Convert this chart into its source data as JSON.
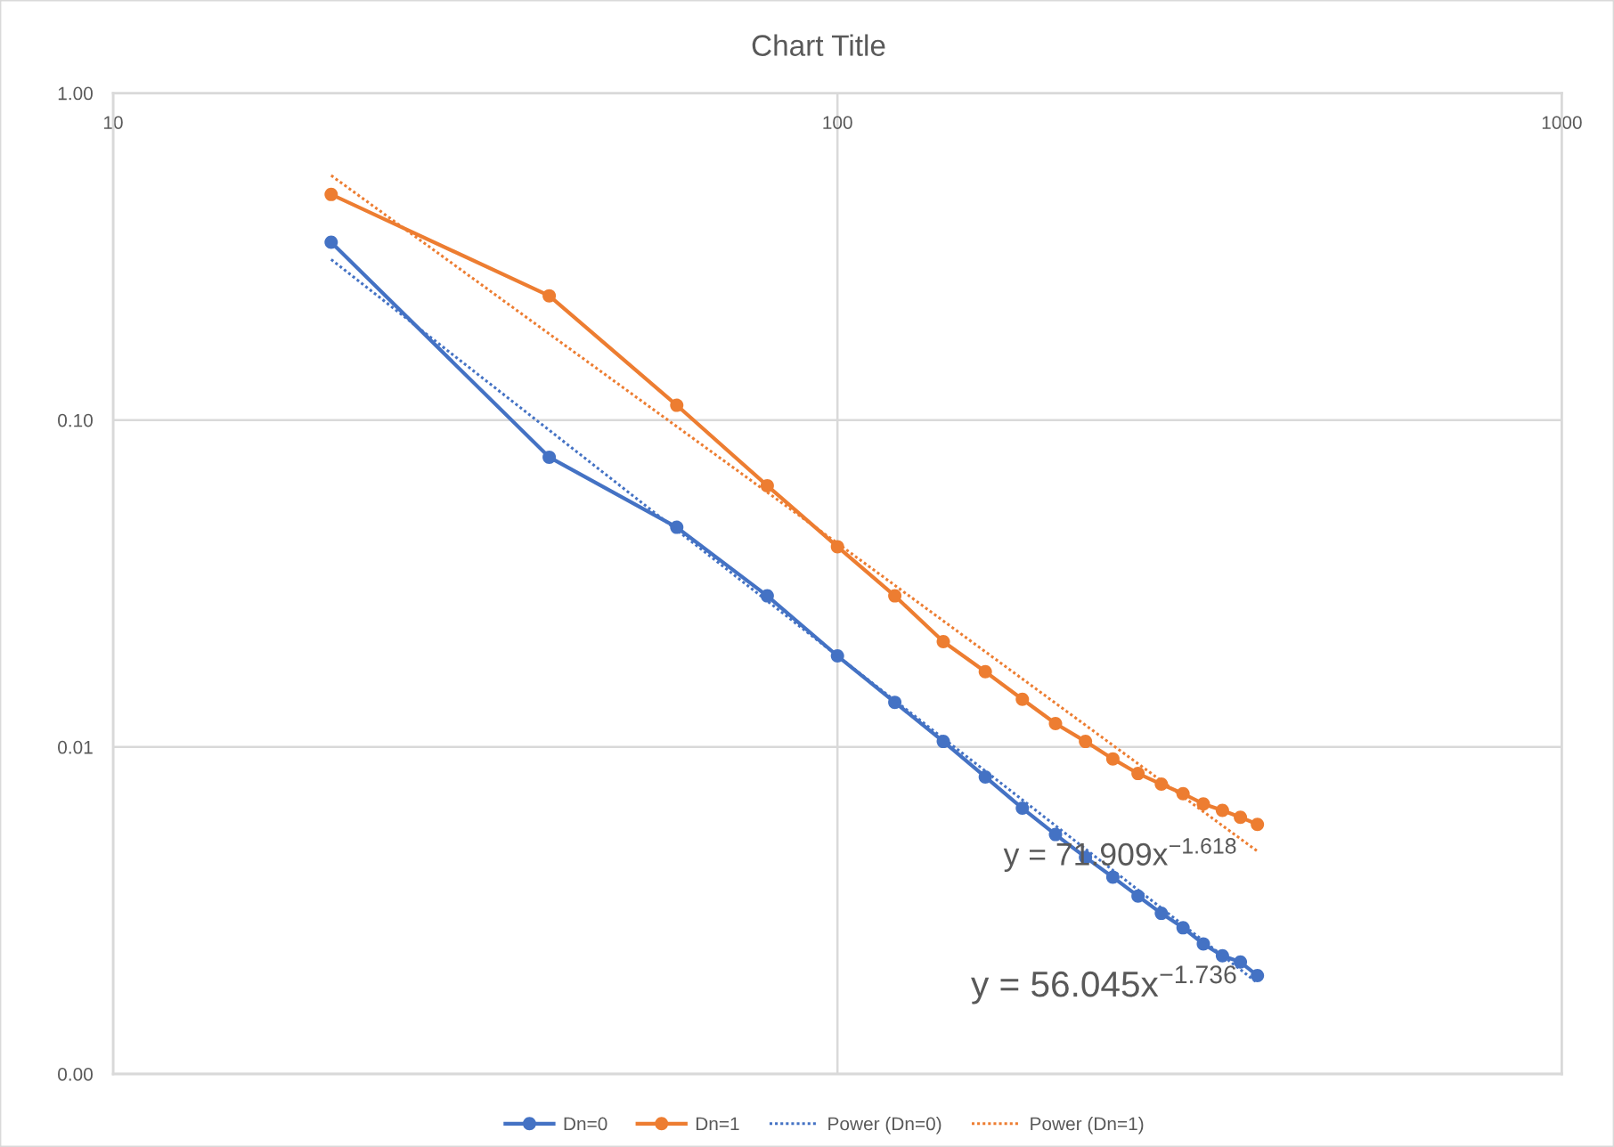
{
  "chart_data": {
    "type": "line",
    "title": "Chart Title",
    "x": [
      20,
      40,
      60,
      80,
      100,
      120,
      140,
      160,
      180,
      200,
      220,
      240,
      260,
      280,
      300,
      320,
      340,
      360,
      380
    ],
    "series": [
      {
        "name": "Dn=0",
        "color": "#4472c4",
        "marker": "circle",
        "line_style": "solid",
        "values": [
          0.35,
          0.077,
          0.047,
          0.029,
          0.019,
          0.0137,
          0.0104,
          0.0081,
          0.0065,
          0.0054,
          0.0046,
          0.004,
          0.0035,
          0.0031,
          0.0028,
          0.0025,
          0.0023,
          0.0022,
          0.002
        ]
      },
      {
        "name": "Dn=1",
        "color": "#ed7d31",
        "marker": "circle",
        "line_style": "solid",
        "values": [
          0.49,
          0.24,
          0.111,
          0.063,
          0.041,
          0.029,
          0.021,
          0.017,
          0.014,
          0.0118,
          0.0104,
          0.0092,
          0.0083,
          0.0077,
          0.0072,
          0.0067,
          0.0064,
          0.0061,
          0.0058
        ]
      },
      {
        "name": "Power (Dn=0)",
        "color": "#4472c4",
        "marker": "none",
        "line_style": "dotted",
        "x": [
          20,
          100,
          380
        ],
        "values": [
          0.31,
          0.019,
          0.0019
        ]
      },
      {
        "name": "Power (Dn=1)",
        "color": "#ed7d31",
        "marker": "none",
        "line_style": "dotted",
        "x": [
          20,
          100,
          380
        ],
        "values": [
          0.56,
          0.042,
          0.0048
        ]
      }
    ],
    "log": "xy",
    "xlim": [
      10,
      1000
    ],
    "ylim": [
      0.001,
      1
    ],
    "xticks": [
      10,
      100,
      1000
    ],
    "yticks": [
      {
        "value": 0.001,
        "label": "0.00"
      },
      {
        "value": 0.01,
        "label": "0.01"
      },
      {
        "value": 0.1,
        "label": "0.10"
      },
      {
        "value": 1,
        "label": "1.00"
      }
    ],
    "grid": true,
    "legend": "bottom",
    "annotations": [
      "y = 71.909x$^{−1.618}$",
      "y = 56.045x$^{−1.736}$"
    ]
  }
}
